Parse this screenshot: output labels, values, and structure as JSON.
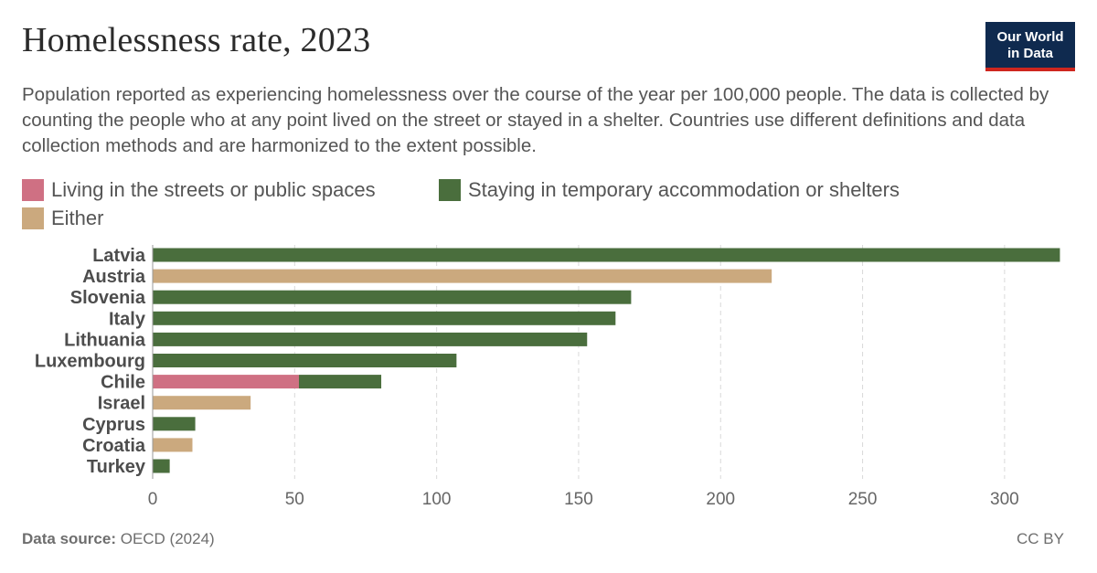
{
  "header": {
    "title": "Homelessness rate, 2023",
    "subtitle": "Population reported as experiencing homelessness over the course of the year per 100,000 people. The data is collected by counting the people who at any point lived on the street or stayed in a shelter. Countries use different definitions and data collection methods and are harmonized to the extent possible.",
    "logo_line1": "Our World",
    "logo_line2": "in Data"
  },
  "colors": {
    "streets": "#cf7083",
    "shelters": "#4a6e3d",
    "either": "#cba97e",
    "logo_bg": "#0f2a4f",
    "logo_accent": "#ce261e"
  },
  "legend": [
    {
      "label": "Living in the streets or public spaces",
      "color": "#cf7083"
    },
    {
      "label": "Staying in temporary accommodation or shelters",
      "color": "#4a6e3d"
    },
    {
      "label": "Either",
      "color": "#cba97e"
    }
  ],
  "chart_data": {
    "type": "bar",
    "orientation": "horizontal",
    "stacked": true,
    "categories": [
      "Latvia",
      "Austria",
      "Slovenia",
      "Italy",
      "Lithuania",
      "Luxembourg",
      "Chile",
      "Israel",
      "Cyprus",
      "Croatia",
      "Turkey"
    ],
    "series": [
      {
        "name": "Living in the streets or public spaces",
        "values": [
          0,
          0,
          0,
          0,
          0,
          0,
          51.5,
          0,
          0,
          0,
          0
        ]
      },
      {
        "name": "Staying in temporary accommodation or shelters",
        "values": [
          319.5,
          0,
          168.5,
          163,
          153,
          107,
          29,
          0,
          15,
          0,
          6
        ]
      },
      {
        "name": "Either",
        "values": [
          0,
          218,
          0,
          0,
          0,
          0,
          0,
          34.5,
          0,
          14,
          0
        ]
      }
    ],
    "xlim": [
      0,
      320
    ],
    "xticks": [
      0,
      50,
      100,
      150,
      200,
      250,
      300
    ],
    "grid": "vertical dashed",
    "legend_position": "top"
  },
  "footer": {
    "source_label": "Data source:",
    "source_value": "OECD (2024)",
    "license": "CC BY"
  }
}
